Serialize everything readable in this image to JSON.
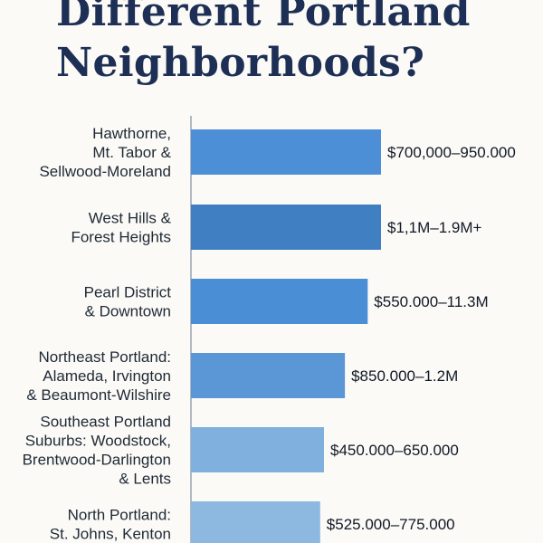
{
  "title": {
    "line1": "Different Portland",
    "line2": "Neighborhoods?"
  },
  "chart_data": {
    "type": "bar",
    "orientation": "horizontal",
    "categories": [
      [
        "Hawthorne,",
        "Mt. Tabor &",
        "Sellwood-Moreland"
      ],
      [
        "West Hills &",
        "Forest Heights"
      ],
      [
        "Pearl District",
        "& Downtown"
      ],
      [
        "Northeast Portland:",
        "Alameda, Irvington",
        "& Beaumont-Wilshire"
      ],
      [
        "Southeast Portland",
        "Suburbs: Woodstock,",
        "Brentwood-Darlington",
        "& Lents"
      ],
      [
        "North Portland:",
        "St. Johns, Kenton"
      ]
    ],
    "value_labels": [
      "$700,000–950.000",
      "$1,1M–1.9M+",
      "$550.000–11.3M",
      "$850.000–1.2M",
      "$450.000–650.000",
      "$525.000–775.000"
    ],
    "values": [
      1,
      1,
      0.93,
      0.81,
      0.7,
      0.68
    ],
    "colors": [
      "#4d8fd6",
      "#3f7fc2",
      "#4a8ed5",
      "#5b97d6",
      "#7fb0de",
      "#8db8e0"
    ],
    "axis_color": "#9aa3ad",
    "grid": false,
    "legend": "none"
  }
}
